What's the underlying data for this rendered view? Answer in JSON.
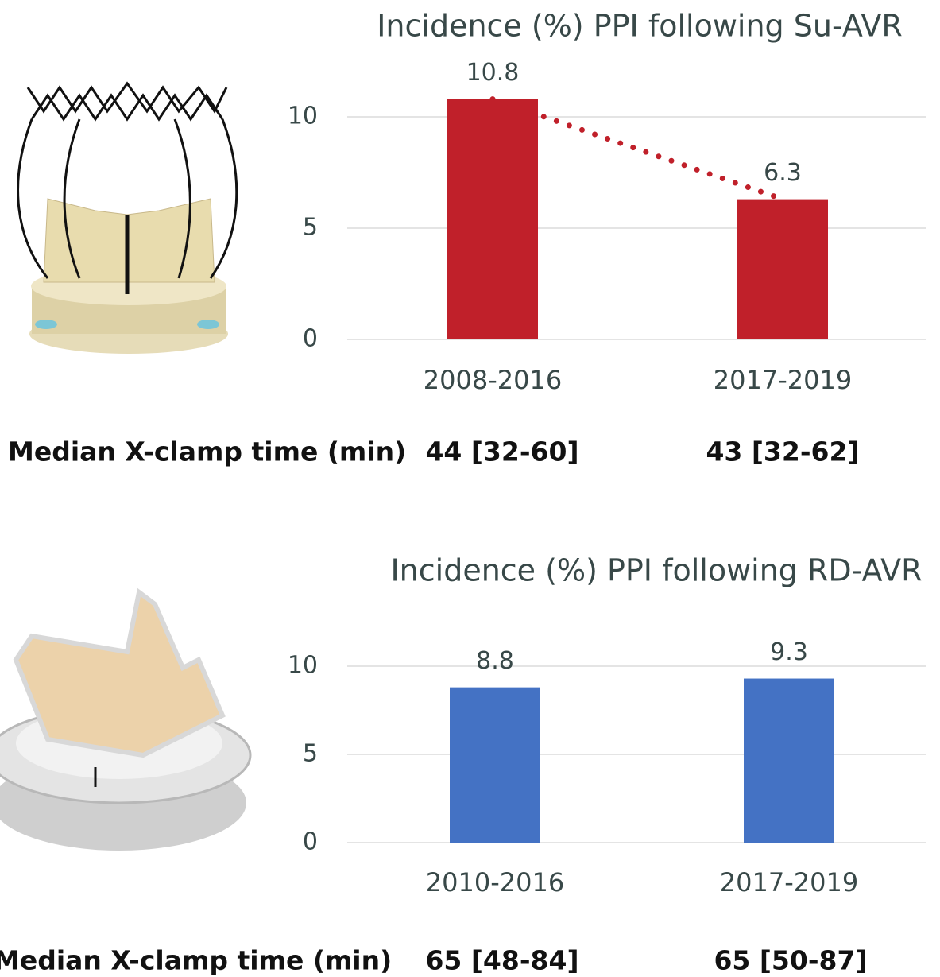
{
  "chart_data": [
    {
      "type": "bar",
      "title": "Incidence (%) PPI following Su-AVR",
      "categories": [
        "2008-2016",
        "2017-2019"
      ],
      "values": [
        10.8,
        6.3
      ],
      "color": "#c0202a",
      "ylim": [
        0,
        12
      ],
      "yticks": [
        0,
        5,
        10
      ],
      "grid": true,
      "trend_line": true,
      "footer_label": "Median X-clamp time (min)",
      "footer_values": [
        "44 [32-60]",
        "43 [32-62]"
      ]
    },
    {
      "type": "bar",
      "title": "Incidence (%) PPI following RD-AVR",
      "categories": [
        "2010-2016",
        "2017-2019"
      ],
      "values": [
        8.8,
        9.3
      ],
      "color": "#4472c4",
      "ylim": [
        0,
        12
      ],
      "yticks": [
        0,
        5,
        10
      ],
      "grid": true,
      "trend_line": false,
      "footer_label": "Median X-clamp time (min)",
      "footer_values": [
        "65 [48-84]",
        "65 [50-87]"
      ]
    }
  ]
}
